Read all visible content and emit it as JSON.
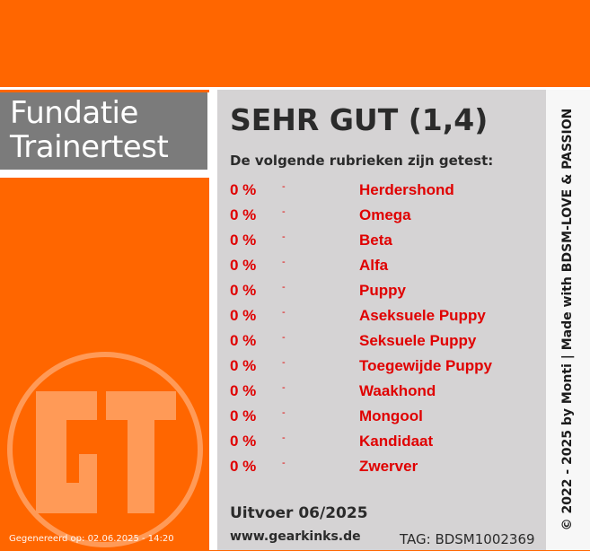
{
  "title": {
    "line1": "Fundatie",
    "line2": "Trainertest"
  },
  "score": "SEHR GUT (1,4)",
  "intro": "De volgende rubrieken zijn getest:",
  "results": [
    {
      "percent": "0 %",
      "dash": "-",
      "category": "Herdershond"
    },
    {
      "percent": "0 %",
      "dash": "-",
      "category": "Omega"
    },
    {
      "percent": "0 %",
      "dash": "-",
      "category": "Beta"
    },
    {
      "percent": "0 %",
      "dash": "-",
      "category": "Alfa"
    },
    {
      "percent": "0 %",
      "dash": "-",
      "category": "Puppy"
    },
    {
      "percent": "0 %",
      "dash": "-",
      "category": "Aseksuele Puppy"
    },
    {
      "percent": "0 %",
      "dash": "-",
      "category": "Seksuele Puppy"
    },
    {
      "percent": "0 %",
      "dash": "-",
      "category": "Toegewijde Puppy"
    },
    {
      "percent": "0 %",
      "dash": "-",
      "category": "Waakhond"
    },
    {
      "percent": "0 %",
      "dash": "-",
      "category": "Mongool"
    },
    {
      "percent": "0 %",
      "dash": "-",
      "category": "Kandidaat"
    },
    {
      "percent": "0 %",
      "dash": "-",
      "category": "Zwerver"
    }
  ],
  "execution": "Uitvoer 06/2025",
  "website": "www.gearkinks.de",
  "tag": "TAG: BDSM1002369",
  "generated": "Gegenereerd op: 02.06.2025 - 14:20",
  "credit": "© 2022 - 2025 by Monti | Made with BDSM-LOVE & PASSION",
  "logo_text": "GT",
  "colors": {
    "accent": "#ff6600",
    "result_red": "#e00000",
    "panel_gray": "#d5d3d4",
    "title_gray": "#7b7b7b"
  }
}
